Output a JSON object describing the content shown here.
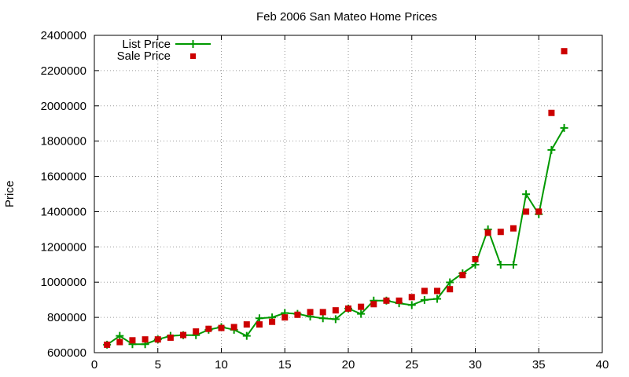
{
  "chart_data": {
    "type": "scatter",
    "title": "Feb 2006 San Mateo Home Prices",
    "xlabel": "",
    "ylabel": "Price",
    "xlim": [
      0,
      40
    ],
    "ylim": [
      600000,
      2400000
    ],
    "x_ticks": [
      0,
      5,
      10,
      15,
      20,
      25,
      30,
      35,
      40
    ],
    "y_ticks": [
      600000,
      800000,
      1000000,
      1200000,
      1400000,
      1600000,
      1800000,
      2000000,
      2200000,
      2400000
    ],
    "grid": true,
    "legend": "top-left",
    "series": [
      {
        "name": "List Price",
        "style": "line-plus",
        "color": "#009900",
        "x": [
          1,
          2,
          3,
          4,
          5,
          6,
          7,
          8,
          9,
          10,
          11,
          12,
          13,
          14,
          15,
          16,
          17,
          18,
          19,
          20,
          21,
          22,
          23,
          24,
          25,
          26,
          27,
          28,
          29,
          30,
          31,
          32,
          33,
          34,
          35,
          36,
          37
        ],
        "y": [
          645000,
          695000,
          648000,
          648000,
          675000,
          695000,
          699000,
          699000,
          730000,
          745000,
          730000,
          695000,
          795000,
          800000,
          825000,
          820000,
          805000,
          795000,
          790000,
          850000,
          820000,
          895000,
          895000,
          880000,
          870000,
          899000,
          905000,
          999000,
          1050000,
          1099000,
          1299000,
          1099000,
          1099000,
          1499000,
          1385000,
          1750000,
          1875000
        ]
      },
      {
        "name": "Sale Price",
        "style": "square",
        "color": "#cc0000",
        "x": [
          1,
          2,
          3,
          4,
          5,
          6,
          7,
          8,
          9,
          10,
          11,
          12,
          13,
          14,
          15,
          16,
          17,
          18,
          19,
          20,
          21,
          22,
          23,
          24,
          25,
          26,
          27,
          28,
          29,
          30,
          31,
          32,
          33,
          34,
          35,
          36,
          37
        ],
        "y": [
          645000,
          660000,
          670000,
          675000,
          675000,
          685000,
          700000,
          720000,
          735000,
          740000,
          745000,
          760000,
          760000,
          775000,
          800000,
          815000,
          830000,
          830000,
          840000,
          850000,
          860000,
          875000,
          895000,
          895000,
          915000,
          950000,
          950000,
          960000,
          1040000,
          1130000,
          1280000,
          1285000,
          1305000,
          1400000,
          1400000,
          1960000,
          2310000
        ]
      }
    ]
  }
}
